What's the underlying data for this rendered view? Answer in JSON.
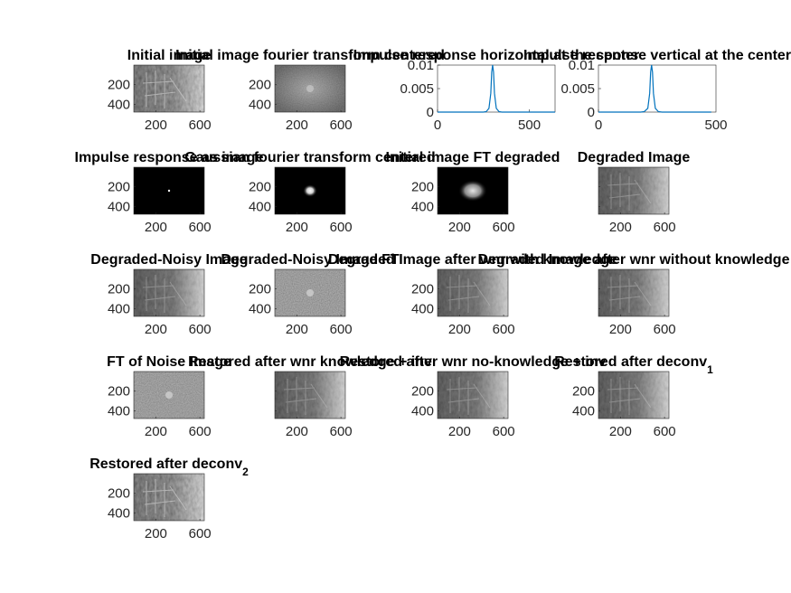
{
  "figure": {
    "panels": [
      {
        "id": "p1",
        "kind": "image",
        "title": "Initial image",
        "image": "scene-gray",
        "yticks": [
          "200",
          "400"
        ],
        "xticks": [
          "200",
          "600"
        ]
      },
      {
        "id": "p2",
        "kind": "image",
        "title": "Initial image fourier transform centered",
        "image": "spectrum-gray",
        "yticks": [
          "200",
          "400"
        ],
        "xticks": [
          "200",
          "600"
        ]
      },
      {
        "id": "p3",
        "kind": "plot",
        "title": "Impulse response horizontal at the center",
        "yticks": [
          "0.01",
          "0.005",
          "0"
        ],
        "xticks": [
          "0",
          "500"
        ]
      },
      {
        "id": "p4",
        "kind": "plot",
        "title": "Impulse response vertical at the center",
        "yticks": [
          "0.01",
          "0.005",
          "0"
        ],
        "xticks": [
          "0",
          "500"
        ]
      },
      {
        "id": "p5",
        "kind": "image",
        "title": "Impulse response as image",
        "image": "dot-dark",
        "yticks": [
          "200",
          "400"
        ],
        "xticks": [
          "200",
          "600"
        ]
      },
      {
        "id": "p6",
        "kind": "image",
        "title": "Gaussian fourier transform centered",
        "image": "blob-dark",
        "yticks": [
          "200",
          "400"
        ],
        "xticks": [
          "200",
          "600"
        ]
      },
      {
        "id": "p7",
        "kind": "image",
        "title": "Initial image FT degraded",
        "image": "blob-large",
        "yticks": [
          "200",
          "400"
        ],
        "xticks": [
          "200",
          "600"
        ]
      },
      {
        "id": "p8",
        "kind": "image",
        "title": "Degraded Image",
        "image": "scene-blur",
        "yticks": [],
        "xticks": [
          "200",
          "600"
        ]
      },
      {
        "id": "p9",
        "kind": "image",
        "title": "Degraded-Noisy Image",
        "image": "scene-blur",
        "yticks": [
          "200",
          "400"
        ],
        "xticks": [
          "200",
          "600"
        ]
      },
      {
        "id": "p10",
        "kind": "image",
        "title": "Degraded-Noisy Image FT",
        "image": "noise-spectrum",
        "yticks": [
          "200",
          "400"
        ],
        "xticks": [
          "200",
          "600"
        ]
      },
      {
        "id": "p11",
        "kind": "image",
        "title": "Degraded Image after wnr with knowledge",
        "image": "scene-blur",
        "yticks": [
          "200",
          "400"
        ],
        "xticks": [
          "200",
          "600"
        ]
      },
      {
        "id": "p12",
        "kind": "image",
        "title": "Degraded Image after wnr without knowledge",
        "image": "scene-blur",
        "yticks": [],
        "xticks": [
          "200",
          "600"
        ]
      },
      {
        "id": "p13",
        "kind": "image",
        "title": "FT of Noise Image",
        "image": "noise-spectrum",
        "yticks": [
          "200",
          "400"
        ],
        "xticks": [
          "200",
          "600"
        ]
      },
      {
        "id": "p14",
        "kind": "image",
        "title": "Restored after wnr knowledge + inv",
        "image": "scene-blur",
        "yticks": [],
        "xticks": [
          "200",
          "600"
        ]
      },
      {
        "id": "p15",
        "kind": "image",
        "title": "Restored after wnr no-knowledge + inv",
        "image": "scene-blur",
        "yticks": [
          "200",
          "400"
        ],
        "xticks": [
          "200",
          "600"
        ]
      },
      {
        "id": "p16",
        "kind": "image",
        "title": "Restored after deconv",
        "title_sub": "1",
        "image": "scene-blur",
        "yticks": [
          "200",
          "400"
        ],
        "xticks": [
          "200",
          "600"
        ]
      },
      {
        "id": "p17",
        "kind": "image",
        "title": "Restored after deconv",
        "title_sub": "2",
        "image": "scene-gray",
        "yticks": [
          "200",
          "400"
        ],
        "xticks": [
          "200",
          "600"
        ]
      }
    ],
    "line_color": "#0072BD"
  },
  "chart_data": [
    {
      "type": "line",
      "title": "Impulse response horizontal at the center",
      "x": [
        0,
        250,
        265,
        280,
        290,
        295,
        300,
        305,
        310,
        320,
        335,
        350,
        640
      ],
      "series": [
        {
          "values": [
            0,
            0,
            0.0001,
            0.0008,
            0.004,
            0.0085,
            0.01,
            0.0085,
            0.004,
            0.0008,
            0.0001,
            0,
            0
          ]
        }
      ],
      "xlim": [
        0,
        640
      ],
      "ylim": [
        0,
        0.01
      ],
      "xticks": [
        0,
        500
      ],
      "yticks": [
        0,
        0.005,
        0.01
      ]
    },
    {
      "type": "line",
      "title": "Impulse response vertical at the center",
      "x": [
        0,
        180,
        195,
        210,
        218,
        222,
        226,
        230,
        234,
        242,
        255,
        270,
        480
      ],
      "series": [
        {
          "values": [
            0,
            0,
            0.0001,
            0.0008,
            0.004,
            0.0085,
            0.01,
            0.0085,
            0.004,
            0.0008,
            0.0001,
            0,
            0
          ]
        }
      ],
      "xlim": [
        0,
        480
      ],
      "ylim": [
        0,
        0.01
      ],
      "xticks": [
        0,
        500
      ],
      "yticks": [
        0,
        0.005,
        0.01
      ]
    }
  ]
}
